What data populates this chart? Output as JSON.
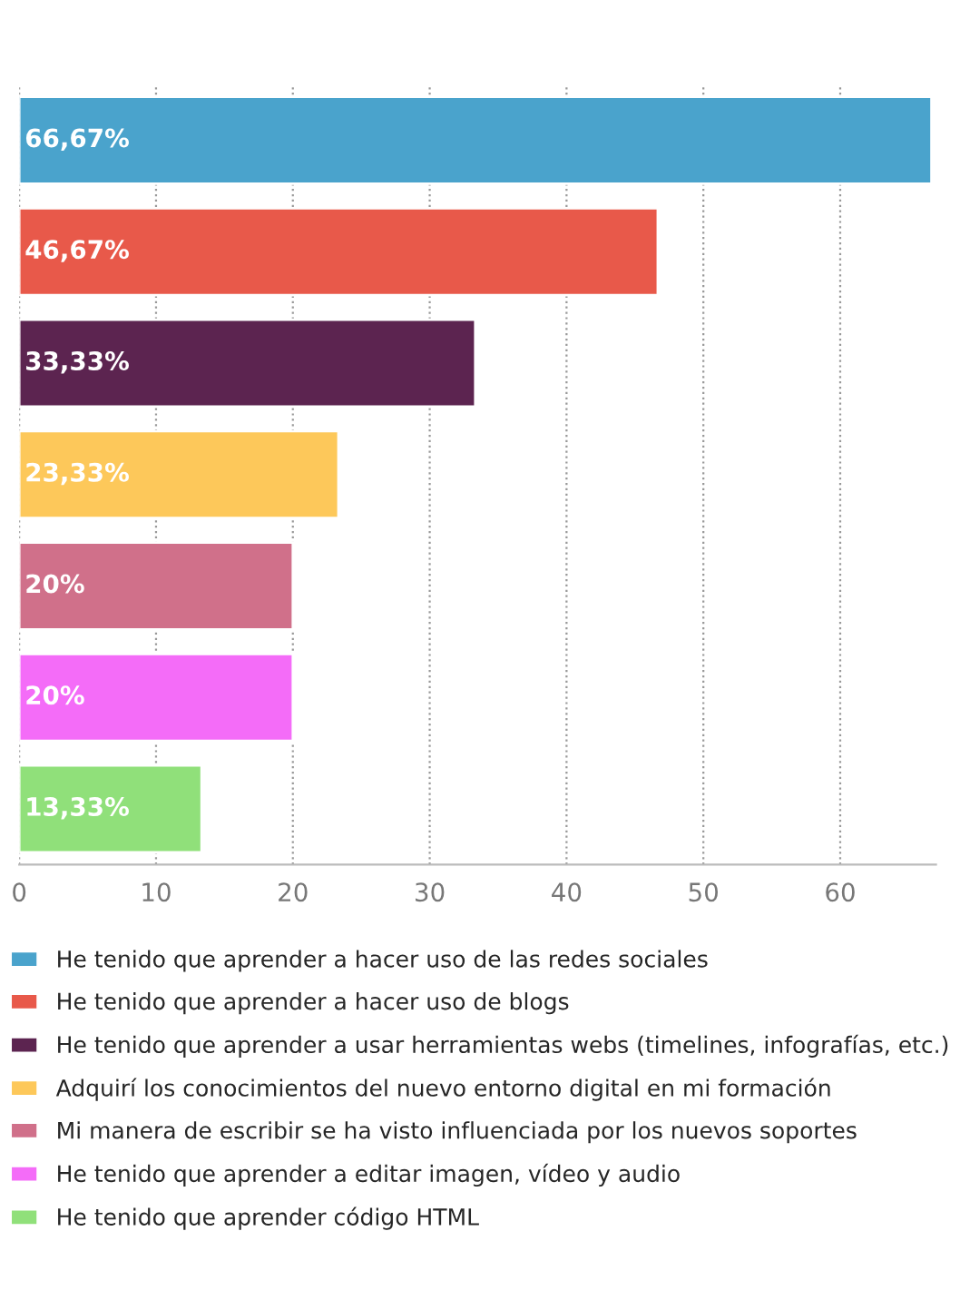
{
  "chart_data": {
    "type": "bar",
    "orientation": "horizontal",
    "categories": [
      null,
      null,
      null,
      null,
      null,
      null,
      null
    ],
    "series": [
      {
        "name": "He tenido que aprender a hacer uso de las redes sociales",
        "color": "#4aa3cc",
        "values": [
          66.67,
          null,
          null,
          null,
          null,
          null,
          null
        ],
        "value_labels": [
          "66,67%",
          null,
          null,
          null,
          null,
          null,
          null
        ]
      },
      {
        "name": "He tenido que aprender a hacer uso de blogs",
        "color": "#e8594a",
        "values": [
          null,
          46.67,
          null,
          null,
          null,
          null,
          null
        ],
        "value_labels": [
          null,
          "46,67%",
          null,
          null,
          null,
          null,
          null
        ]
      },
      {
        "name": "He tenido que aprender a usar herramientas webs (timelines, infografías, etc.)",
        "color": "#5c2450",
        "values": [
          null,
          null,
          33.33,
          null,
          null,
          null,
          null
        ],
        "value_labels": [
          null,
          null,
          "33,33%",
          null,
          null,
          null,
          null
        ]
      },
      {
        "name": "Adquirí los conocimientos del nuevo entorno digital en mi formación",
        "color": "#fdc85a",
        "values": [
          null,
          null,
          null,
          23.33,
          null,
          null,
          null
        ],
        "value_labels": [
          null,
          null,
          null,
          "23,33%",
          null,
          null,
          null
        ]
      },
      {
        "name": "Mi manera de escribir se ha visto influenciada por los nuevos soportes",
        "color": "#d0708a",
        "values": [
          null,
          null,
          null,
          null,
          20,
          null,
          null
        ],
        "value_labels": [
          null,
          null,
          null,
          null,
          "20%",
          null,
          null
        ]
      },
      {
        "name": "He tenido que aprender a editar imagen, vídeo y audio",
        "color": "#f46cf8",
        "values": [
          null,
          null,
          null,
          null,
          null,
          20,
          null
        ],
        "value_labels": [
          null,
          null,
          null,
          null,
          null,
          "20%",
          null
        ]
      },
      {
        "name": "He tenido que aprender código HTML",
        "color": "#90e07a",
        "values": [
          null,
          null,
          null,
          null,
          null,
          null,
          13.33
        ],
        "value_labels": [
          null,
          null,
          null,
          null,
          null,
          null,
          "13,33%"
        ]
      }
    ],
    "xlim": [
      0,
      67
    ],
    "xticks": [
      0,
      10,
      20,
      30,
      40,
      50,
      60
    ],
    "grid": "x",
    "legend": "bottom",
    "tick_labels": "x"
  }
}
